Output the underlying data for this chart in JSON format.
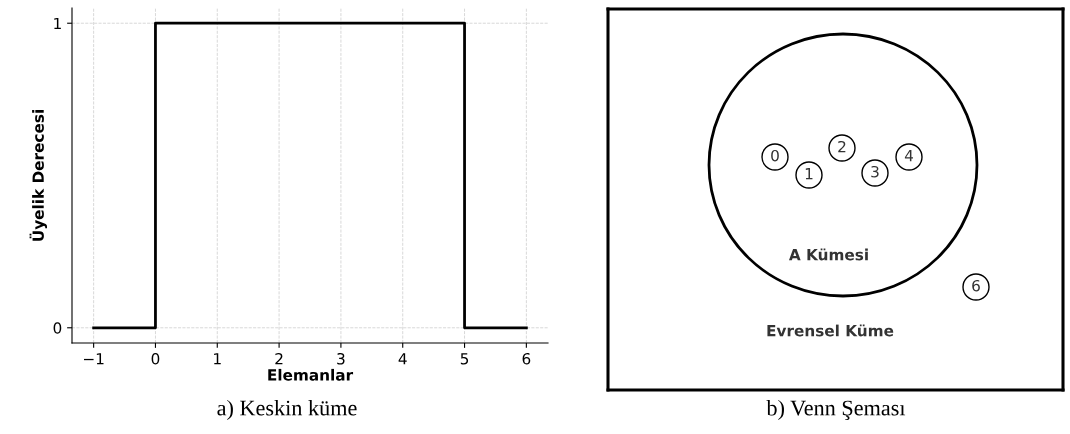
{
  "chart_data": [
    {
      "type": "line",
      "xlabel": "Elemanlar",
      "ylabel": "Üyelik Derecesi",
      "x": [
        -1,
        0,
        0,
        5,
        5,
        6
      ],
      "series": [
        {
          "color": "#000000",
          "values": [
            0,
            0,
            1,
            1,
            0,
            0
          ]
        }
      ],
      "xlim": [
        -1.35,
        6.35
      ],
      "ylim": [
        -0.05,
        1.05
      ],
      "xticks": [
        {
          "value": -1,
          "label": "−1"
        },
        0,
        1,
        2,
        3,
        4,
        5,
        6
      ],
      "yticks": [
        0,
        1
      ],
      "grid": true,
      "line_style": "solid",
      "annotations": [
        "a) Keskin küme"
      ]
    },
    {
      "type": "other",
      "annotations": [
        "0",
        "1",
        "2",
        "3",
        "4",
        "6",
        "A Kümesi",
        "Evrensel Küme",
        "b) Venn Şeması"
      ]
    }
  ]
}
